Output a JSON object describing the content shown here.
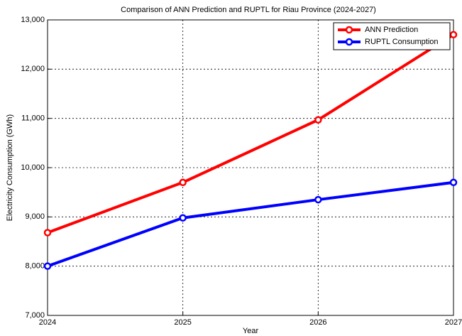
{
  "chart_data": {
    "type": "line",
    "title": "Comparison of ANN Prediction and RUPTL for Riau Province (2024-2027)",
    "x_label": "Year",
    "y_label": "Electricity Consumption (GWh)",
    "x": [
      2024,
      2025,
      2026,
      2027
    ],
    "series": [
      {
        "name": "ANN Prediction",
        "color": "#ff0000",
        "values": [
          8680,
          9700,
          10970,
          12700
        ]
      },
      {
        "name": "RUPTL Consumption",
        "color": "#0000ff",
        "values": [
          8000,
          8980,
          9350,
          9700
        ]
      }
    ],
    "xlim": [
      2024,
      2027
    ],
    "xticks": [
      2024,
      2025,
      2026,
      2027
    ],
    "ylim": [
      7000,
      13000
    ],
    "yticks": [
      {
        "value": 7000,
        "label": "7,000"
      },
      {
        "value": 8000,
        "label": "8,000"
      },
      {
        "value": 9000,
        "label": "9,000"
      },
      {
        "value": 10000,
        "label": "10,000"
      },
      {
        "value": 11000,
        "label": "11,000"
      },
      {
        "value": 12000,
        "label": "12,000"
      },
      {
        "value": 13000,
        "label": "13,000"
      }
    ],
    "grid": true,
    "legend": "upper right"
  }
}
